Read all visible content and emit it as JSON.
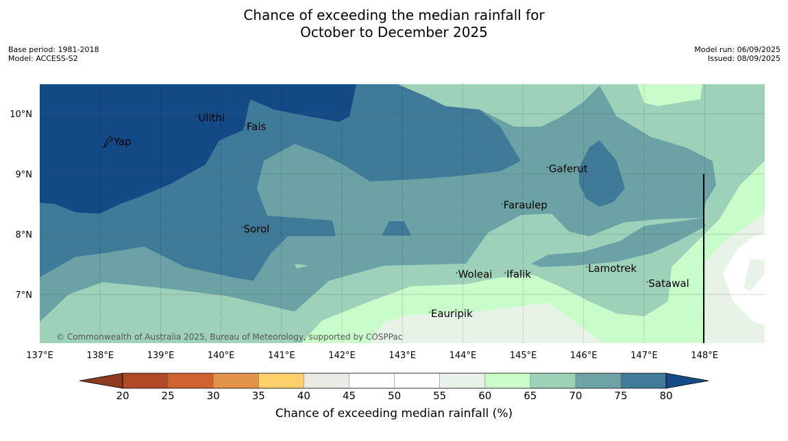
{
  "title": {
    "line1": "Chance of exceeding the median rainfall for",
    "line2": "October to December 2025"
  },
  "meta": {
    "base_period": "Base period: 1981-2018",
    "model": "Model: ACCESS-S2",
    "model_run": "Model run: 06/09/2025",
    "issued": "Issued: 08/09/2025"
  },
  "map": {
    "lon_range": [
      137,
      149
    ],
    "lat_range": [
      6.2,
      10.5
    ],
    "lon_ticks": [
      "137°E",
      "138°E",
      "139°E",
      "140°E",
      "141°E",
      "142°E",
      "143°E",
      "144°E",
      "145°E",
      "146°E",
      "147°E",
      "148°E"
    ],
    "lat_ticks": [
      "10°N",
      "9°N",
      "8°N",
      "7°N"
    ],
    "places": [
      {
        "name": "Yap",
        "lon": 138.2,
        "lat": 9.5
      },
      {
        "name": "Ulithi",
        "lon": 139.6,
        "lat": 9.9
      },
      {
        "name": "Fais",
        "lon": 140.4,
        "lat": 9.75
      },
      {
        "name": "Gaferut",
        "lon": 145.4,
        "lat": 9.05
      },
      {
        "name": "Faraulep",
        "lon": 144.65,
        "lat": 8.45
      },
      {
        "name": "Sorol",
        "lon": 140.35,
        "lat": 8.05
      },
      {
        "name": "Woleai",
        "lon": 143.9,
        "lat": 7.3
      },
      {
        "name": "Ifalik",
        "lon": 144.7,
        "lat": 7.3
      },
      {
        "name": "Lamotrek",
        "lon": 146.05,
        "lat": 7.4
      },
      {
        "name": "Satawal",
        "lon": 147.05,
        "lat": 7.15
      },
      {
        "name": "Eauripik",
        "lon": 143.45,
        "lat": 6.65
      }
    ],
    "copyright": "© Commonwealth of Australia 2025, Bureau of Meteorology, supported by COSPPac"
  },
  "colorbar": {
    "title": "Chance of exceeding median rainfall (%)",
    "ticks": [
      "20",
      "25",
      "30",
      "35",
      "40",
      "45",
      "50",
      "55",
      "60",
      "65",
      "70",
      "75",
      "80"
    ],
    "under_color": "#8f3a1e",
    "over_color": "#154c85",
    "colors": [
      "#b04a26",
      "#cf6330",
      "#e29347",
      "#fdd06b",
      "#ede9e4",
      "#ffffff",
      "#ffffff",
      "#e9f3e9",
      "#c9fcc8",
      "#9dd1b8",
      "#6ea3a6",
      "#427a99"
    ]
  },
  "legend_colors": {
    "very_wet": "#134a86",
    "wet_75_80": "#407a99",
    "wet_70_75": "#6aa2a5",
    "wet_65_70": "#9dd1b9",
    "wet_60_65": "#c8fcc8",
    "neutral_55_60": "#e8f3e8",
    "neutral_50_55": "#ffffff"
  }
}
